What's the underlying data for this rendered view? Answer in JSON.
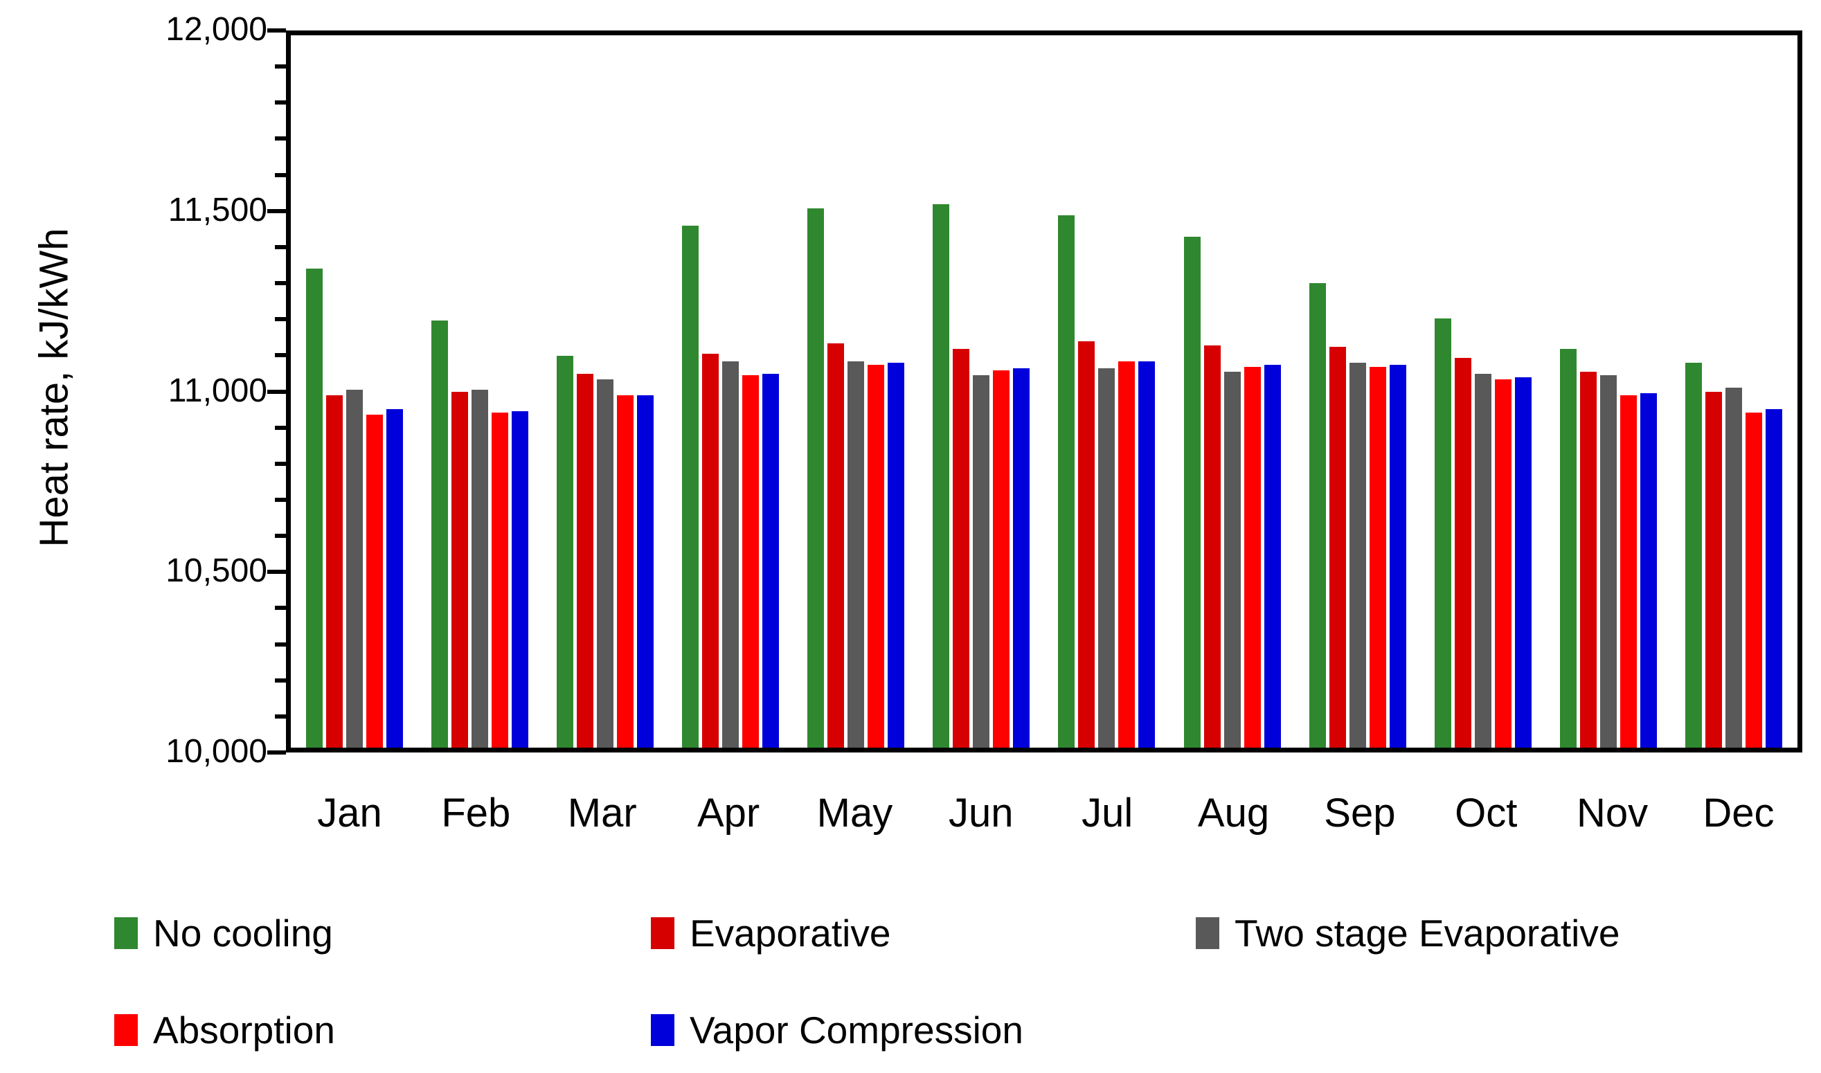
{
  "chart_data": {
    "type": "bar",
    "title": "",
    "xlabel": "",
    "ylabel": "Heat rate, kJ/kWh",
    "ylim": [
      10000,
      12000
    ],
    "ytick_interval": 500,
    "minor_tick_interval": 100,
    "yticks": [
      "10,000",
      "10,500",
      "11,000",
      "11,500",
      "12,000"
    ],
    "grid": false,
    "legend_position": "bottom",
    "categories": [
      "Jan",
      "Feb",
      "Mar",
      "Apr",
      "May",
      "Jun",
      "Jul",
      "Aug",
      "Sep",
      "Oct",
      "Nov",
      "Dec"
    ],
    "series": [
      {
        "name": "No cooling",
        "color": "#2F882F",
        "values": [
          11345,
          11200,
          11100,
          11465,
          11515,
          11525,
          11495,
          11435,
          11305,
          11205,
          11120,
          11080
        ]
      },
      {
        "name": "Evaporative",
        "color": "#D60000",
        "values": [
          10990,
          11000,
          11050,
          11105,
          11135,
          11120,
          11140,
          11130,
          11125,
          11095,
          11055,
          11000
        ]
      },
      {
        "name": "Two stage Evaporative",
        "color": "#595959",
        "values": [
          11005,
          11005,
          11035,
          11085,
          11085,
          11045,
          11065,
          11055,
          11080,
          11050,
          11045,
          11010
        ]
      },
      {
        "name": "Absorption",
        "color": "#FF0000",
        "values": [
          10935,
          10940,
          10990,
          11045,
          11075,
          11060,
          11085,
          11070,
          11070,
          11035,
          10990,
          10940
        ]
      },
      {
        "name": "Vapor Compression",
        "color": "#0000DB",
        "values": [
          10950,
          10945,
          10990,
          11050,
          11080,
          11065,
          11085,
          11075,
          11075,
          11040,
          10995,
          10950
        ]
      }
    ],
    "legend_layout": {
      "rows": [
        {
          "top": 1318,
          "items": [
            {
              "series": 0,
              "left": 165
            },
            {
              "series": 1,
              "left": 940
            },
            {
              "series": 2,
              "left": 1727
            }
          ]
        },
        {
          "top": 1458,
          "items": [
            {
              "series": 3,
              "left": 165
            },
            {
              "series": 4,
              "left": 940
            }
          ]
        }
      ]
    }
  }
}
